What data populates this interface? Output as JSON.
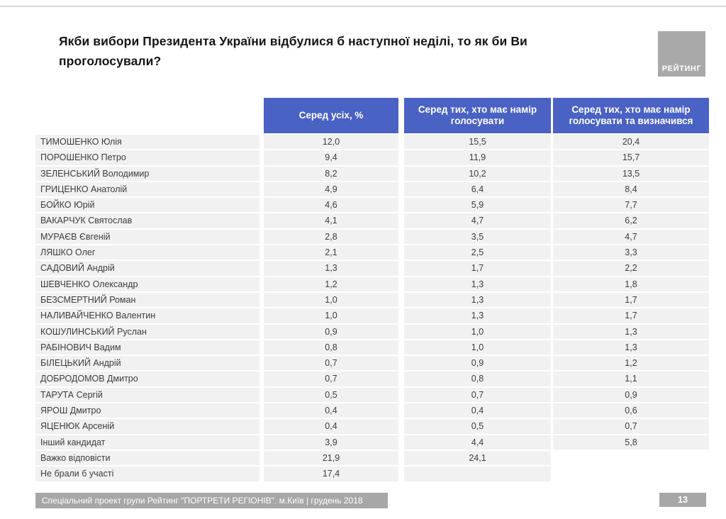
{
  "title": "Якби вибори Президента України відбулися б наступної неділі, то як би Ви проголосували?",
  "logo_text": "РЕЙТИНГ",
  "colors": {
    "header_blue": "#4a62c4",
    "cell_gray": "#f1f1f2",
    "footer_gray": "#a7a7a7",
    "logo_gray": "#a9a9a9"
  },
  "table": {
    "columns": [
      "Серед усіх, %",
      "Серед тих, хто має намір голосувати",
      "Серед тих, хто має намір голосувати та визначився"
    ],
    "rows": [
      {
        "name": "ТИМОШЕНКО Юлія",
        "among_all": "12,0",
        "among_voters": "15,5",
        "among_decided": "20,4"
      },
      {
        "name": "ПОРОШЕНКО Петро",
        "among_all": "9,4",
        "among_voters": "11,9",
        "among_decided": "15,7"
      },
      {
        "name": "ЗЕЛЕНСЬКИЙ Володимир",
        "among_all": "8,2",
        "among_voters": "10,2",
        "among_decided": "13,5"
      },
      {
        "name": "ГРИЦЕНКО Анатолій",
        "among_all": "4,9",
        "among_voters": "6,4",
        "among_decided": "8,4"
      },
      {
        "name": "БОЙКО Юрій",
        "among_all": "4,6",
        "among_voters": "5,9",
        "among_decided": "7,7"
      },
      {
        "name": "ВАКАРЧУК Святослав",
        "among_all": "4,1",
        "among_voters": "4,7",
        "among_decided": "6,2"
      },
      {
        "name": "МУРАЄВ Євгеній",
        "among_all": "2,8",
        "among_voters": "3,5",
        "among_decided": "4,7"
      },
      {
        "name": "ЛЯШКО Олег",
        "among_all": "2,1",
        "among_voters": "2,5",
        "among_decided": "3,3"
      },
      {
        "name": "САДОВИЙ Андрій",
        "among_all": "1,3",
        "among_voters": "1,7",
        "among_decided": "2,2"
      },
      {
        "name": "ШЕВЧЕНКО Олександр",
        "among_all": "1,2",
        "among_voters": "1,3",
        "among_decided": "1,8"
      },
      {
        "name": "БЕЗСМЕРТНИЙ Роман",
        "among_all": "1,0",
        "among_voters": "1,3",
        "among_decided": "1,7"
      },
      {
        "name": "НАЛИВАЙЧЕНКО Валентин",
        "among_all": "1,0",
        "among_voters": "1,3",
        "among_decided": "1,7"
      },
      {
        "name": "КОШУЛИНСЬКИЙ Руслан",
        "among_all": "0,9",
        "among_voters": "1,0",
        "among_decided": "1,3"
      },
      {
        "name": "РАБІНОВИЧ Вадим",
        "among_all": "0,8",
        "among_voters": "1,0",
        "among_decided": "1,3"
      },
      {
        "name": "БІЛЕЦЬКИЙ Андрій",
        "among_all": "0,7",
        "among_voters": "0,9",
        "among_decided": "1,2"
      },
      {
        "name": "ДОБРОДОМОВ Дмитро",
        "among_all": "0,7",
        "among_voters": "0,8",
        "among_decided": "1,1"
      },
      {
        "name": "ТАРУТА Сергій",
        "among_all": "0,5",
        "among_voters": "0,7",
        "among_decided": "0,9"
      },
      {
        "name": "ЯРОШ Дмитро",
        "among_all": "0,4",
        "among_voters": "0,4",
        "among_decided": "0,6"
      },
      {
        "name": "ЯЦЕНЮК Арсеній",
        "among_all": "0,4",
        "among_voters": "0,5",
        "among_decided": "0,7"
      },
      {
        "name": "Інший кандидат",
        "among_all": "3,9",
        "among_voters": "4,4",
        "among_decided": "5,8"
      },
      {
        "name": "Важко відповісти",
        "among_all": "21,9",
        "among_voters": "24,1",
        "among_decided": null
      },
      {
        "name": "Не брали б участі",
        "among_all": "17,4",
        "among_voters": "",
        "among_decided": null
      }
    ]
  },
  "footer": {
    "text": "Спеціальний проект групи Рейтинг \"ПОРТРЕТИ РЕГІОНІВ\". м.Київ | грудень 2018",
    "page": "13"
  }
}
